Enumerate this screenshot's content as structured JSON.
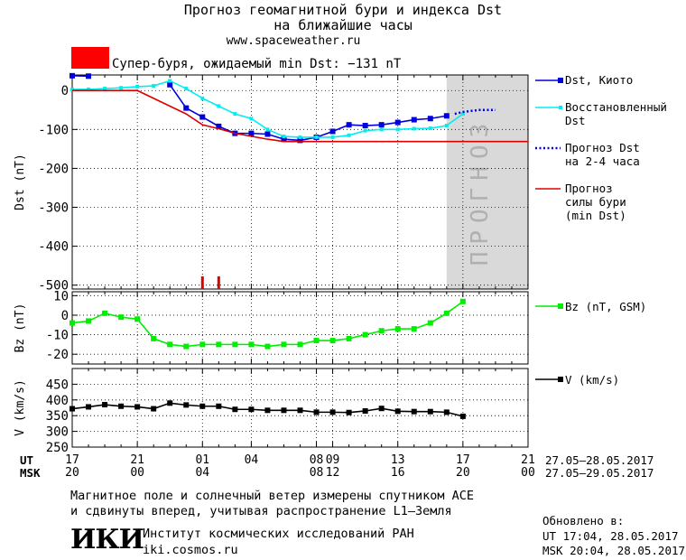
{
  "header": {
    "title_line1": "Прогноз геомагнитной бури и индекса Dst",
    "title_line2": "на ближайшие часы",
    "url": "www.spaceweather.ru"
  },
  "alert": {
    "label": "Супер-буря, ожидаемый min Dst: −131 nT",
    "color": "#ff0000"
  },
  "legend": {
    "dst_kyoto": "Dst, Киото",
    "dst_restored_1": "Восстановленный",
    "dst_restored_2": "Dst",
    "dst_forecast_1": "Прогноз Dst",
    "dst_forecast_2": "на 2-4 часа",
    "storm_forecast_1": "Прогноз",
    "storm_forecast_2": "силы бури",
    "storm_forecast_3": "(min Dst)",
    "bz": "Bz (nT, GSM)",
    "v": "V (km/s)"
  },
  "forecast_zone_label": "ПРОГНОЗ",
  "time_axis": {
    "ut_label": "UT",
    "msk_label": "MSK",
    "ut_ticks": [
      "17",
      "21",
      "01",
      "04",
      "08",
      "09",
      "13",
      "17",
      "21"
    ],
    "msk_ticks": [
      "20",
      "00",
      "04",
      "08",
      "12",
      "16",
      "20",
      "00"
    ],
    "ut_range": "27.05–28.05.2017",
    "msk_range": "27.05–29.05.2017"
  },
  "footer": {
    "note_line1": "Магнитное поле и солнечный ветер измерены спутником ACE",
    "note_line2": "и сдвинуты вперед, учитывая распространение L1–Земля",
    "logo": "ИКИ",
    "institute": "Институт космических исследований РАН",
    "site": "iki.cosmos.ru",
    "updated_label": "Обновлено в:",
    "updated_ut": "UT  17:04, 28.05.2017",
    "updated_msk": "MSK 20:04, 28.05.2017"
  },
  "colors": {
    "dst_kyoto": "#0000dd",
    "dst_restored": "#00eeee",
    "dst_forecast": "#0000dd",
    "storm_forecast": "#dd0000",
    "bz": "#00ee00",
    "v": "#000000",
    "forecast_zone": "#d9d9d9"
  },
  "chart_data": [
    {
      "type": "line",
      "ylabel": "Dst (nT)",
      "ylim": [
        -510,
        40
      ],
      "yticks": [
        0,
        -100,
        -200,
        -300,
        -400,
        -500
      ],
      "x_unit": "hours from 27.05.2017 17:00 UT",
      "xlim": [
        0,
        28
      ],
      "forecast_zone_x": [
        23,
        28
      ],
      "series": [
        {
          "name": "Dst, Киото",
          "style": "line-square",
          "x": [
            0,
            1,
            2,
            3,
            4,
            5,
            6,
            7,
            8,
            9,
            10,
            11,
            12,
            13,
            14,
            15,
            16,
            17,
            18,
            19,
            20,
            21,
            22,
            23
          ],
          "y": [
            38,
            37,
            null,
            null,
            null,
            null,
            15,
            -45,
            -68,
            -92,
            -110,
            -110,
            -112,
            -125,
            -128,
            -120,
            -105,
            -88,
            -90,
            -88,
            -82,
            -75,
            -72,
            -65
          ]
        },
        {
          "name": "Восстановленный Dst",
          "style": "line-small-square",
          "x": [
            0,
            1,
            2,
            3,
            4,
            5,
            6,
            7,
            8,
            9,
            10,
            11,
            12,
            13,
            14,
            15,
            16,
            17,
            18,
            19,
            20,
            21,
            22,
            23,
            24
          ],
          "y": [
            3,
            3,
            5,
            7,
            10,
            12,
            25,
            5,
            -20,
            -40,
            -60,
            -72,
            -100,
            -118,
            -120,
            -120,
            -120,
            -115,
            -103,
            -100,
            -100,
            -98,
            -97,
            -90,
            -60
          ]
        },
        {
          "name": "Прогноз Dst на 2-4 часа",
          "style": "dotted",
          "x": [
            23.5,
            24,
            25,
            26
          ],
          "y": [
            -60,
            -55,
            -50,
            -50
          ]
        },
        {
          "name": "Прогноз силы бури (min Dst)",
          "style": "line",
          "x": [
            0,
            4,
            6,
            7,
            8,
            9,
            10,
            12,
            13,
            15,
            28
          ],
          "y": [
            0,
            0,
            -40,
            -60,
            -88,
            -98,
            -110,
            -125,
            -131,
            -131,
            -131
          ]
        }
      ],
      "markers": [
        8,
        9
      ]
    },
    {
      "type": "line",
      "ylabel": "Bz (nT)",
      "ylim": [
        -25,
        12
      ],
      "yticks": [
        10,
        0,
        -10,
        -20
      ],
      "xlim": [
        0,
        28
      ],
      "series": [
        {
          "name": "Bz (nT, GSM)",
          "x": [
            0,
            1,
            2,
            3,
            4,
            5,
            6,
            7,
            8,
            9,
            10,
            11,
            12,
            13,
            14,
            15,
            16,
            17,
            18,
            19,
            20,
            21,
            22,
            23,
            24
          ],
          "y": [
            -4,
            -3,
            1,
            -1,
            -2,
            -12,
            -15,
            -16,
            -15,
            -15,
            -15,
            -15,
            -16,
            -15,
            -15,
            -13,
            -13,
            -12,
            -10,
            -8,
            -7,
            -7,
            -4,
            1,
            7
          ]
        }
      ]
    },
    {
      "type": "line",
      "ylabel": "V (km/s)",
      "ylim": [
        250,
        500
      ],
      "yticks": [
        450,
        400,
        350,
        300,
        250
      ],
      "xlim": [
        0,
        28
      ],
      "series": [
        {
          "name": "V (km/s)",
          "x": [
            0,
            1,
            2,
            3,
            4,
            5,
            6,
            7,
            8,
            9,
            10,
            11,
            12,
            13,
            14,
            15,
            16,
            17,
            18,
            19,
            20,
            21,
            22,
            23,
            24
          ],
          "y": [
            372,
            378,
            385,
            380,
            378,
            372,
            390,
            384,
            380,
            380,
            370,
            370,
            367,
            367,
            367,
            361,
            361,
            360,
            365,
            373,
            364,
            363,
            363,
            361,
            348
          ]
        }
      ]
    }
  ]
}
